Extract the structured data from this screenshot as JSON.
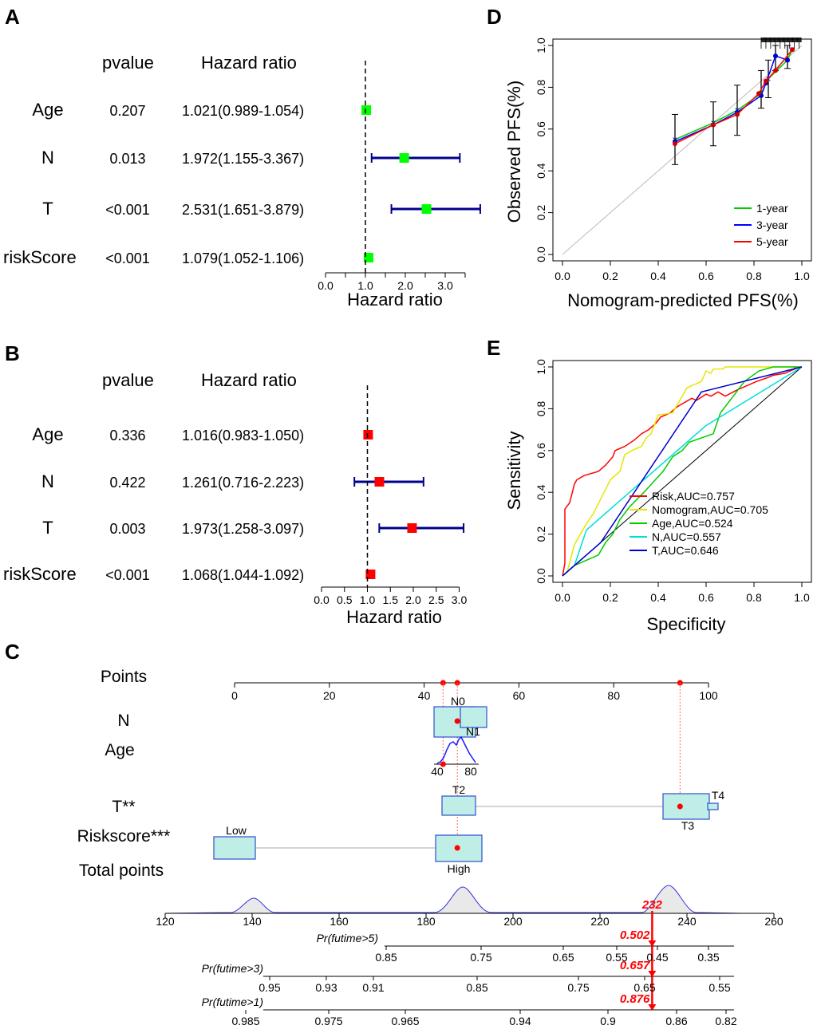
{
  "panels": {
    "A": "A",
    "B": "B",
    "C": "C",
    "D": "D",
    "E": "E"
  },
  "chart_data": [
    {
      "id": "A",
      "type": "forest",
      "headers": {
        "pvalue": "pvalue",
        "hr": "Hazard ratio"
      },
      "rows": [
        {
          "label": "Age",
          "pvalue": "0.207",
          "hr_text": "1.021(0.989-1.054)",
          "hr": 1.021,
          "lo": 0.989,
          "hi": 1.054
        },
        {
          "label": "N",
          "pvalue": "0.013",
          "hr_text": "1.972(1.155-3.367)",
          "hr": 1.972,
          "lo": 1.155,
          "hi": 3.367
        },
        {
          "label": "T",
          "pvalue": "<0.001",
          "hr_text": "2.531(1.651-3.879)",
          "hr": 2.531,
          "lo": 1.651,
          "hi": 3.879
        },
        {
          "label": "riskScore",
          "pvalue": "<0.001",
          "hr_text": "1.079(1.052-1.106)",
          "hr": 1.079,
          "lo": 1.052,
          "hi": 1.106
        }
      ],
      "xticks": [
        0.0,
        0.5,
        1.0,
        1.5,
        2.0,
        2.5,
        3.0,
        3.5
      ],
      "xtick_labels": [
        "0.0",
        "",
        "1.0",
        "",
        "2.0",
        "",
        "3.0",
        ""
      ],
      "xlim": [
        0,
        3.5
      ],
      "xlabel": "Hazard ratio",
      "ref_line": 1.0,
      "color": "#00ff00",
      "ci_color": "#00008b"
    },
    {
      "id": "B",
      "type": "forest",
      "headers": {
        "pvalue": "pvalue",
        "hr": "Hazard ratio"
      },
      "rows": [
        {
          "label": "Age",
          "pvalue": "0.336",
          "hr_text": "1.016(0.983-1.050)",
          "hr": 1.016,
          "lo": 0.983,
          "hi": 1.05
        },
        {
          "label": "N",
          "pvalue": "0.422",
          "hr_text": "1.261(0.716-2.223)",
          "hr": 1.261,
          "lo": 0.716,
          "hi": 2.223
        },
        {
          "label": "T",
          "pvalue": "0.003",
          "hr_text": "1.973(1.258-3.097)",
          "hr": 1.973,
          "lo": 1.258,
          "hi": 3.097
        },
        {
          "label": "riskScore",
          "pvalue": "<0.001",
          "hr_text": "1.068(1.044-1.092)",
          "hr": 1.068,
          "lo": 1.044,
          "hi": 1.092
        }
      ],
      "xticks": [
        0.0,
        0.5,
        1.0,
        1.5,
        2.0,
        2.5,
        3.0
      ],
      "xtick_labels": [
        "0.0",
        "0.5",
        "1.0",
        "1.5",
        "2.0",
        "2.5",
        "3.0"
      ],
      "xlim": [
        0,
        3
      ],
      "xlabel": "Hazard ratio",
      "ref_line": 1.0,
      "color": "#ff0000",
      "ci_color": "#00008b"
    },
    {
      "id": "D",
      "type": "line",
      "title": "",
      "xlabel": "Nomogram-predicted PFS(%)",
      "ylabel": "Observed PFS(%)",
      "xlim": [
        0,
        1
      ],
      "ylim": [
        0,
        1
      ],
      "xticks": [
        "0.0",
        "0.2",
        "0.4",
        "0.6",
        "0.8",
        "1.0"
      ],
      "yticks": [
        "0.0",
        "0.2",
        "0.4",
        "0.6",
        "0.8",
        "1.0"
      ],
      "diagonal": true,
      "series": [
        {
          "name": "1-year",
          "color": "#00cc00",
          "x": [
            0.47,
            0.63,
            0.73,
            0.83,
            0.86,
            0.94,
            0.96
          ],
          "y": [
            0.55,
            0.63,
            0.69,
            0.77,
            0.84,
            0.93,
            0.98
          ]
        },
        {
          "name": "3-year",
          "color": "#0000ff",
          "x": [
            0.47,
            0.63,
            0.73,
            0.83,
            0.85,
            0.89,
            0.94
          ],
          "y": [
            0.54,
            0.62,
            0.68,
            0.76,
            0.82,
            0.95,
            0.93
          ]
        },
        {
          "name": "5-year",
          "color": "#ff0000",
          "x": [
            0.47,
            0.63,
            0.73,
            0.82,
            0.85,
            0.89,
            0.96
          ],
          "y": [
            0.53,
            0.62,
            0.67,
            0.77,
            0.83,
            0.88,
            0.98
          ]
        }
      ],
      "error_bars": [
        {
          "x": 0.47,
          "y": 0.54,
          "lo": 0.43,
          "hi": 0.67
        },
        {
          "x": 0.63,
          "y": 0.62,
          "lo": 0.52,
          "hi": 0.73
        },
        {
          "x": 0.73,
          "y": 0.68,
          "lo": 0.57,
          "hi": 0.81
        },
        {
          "x": 0.83,
          "y": 0.77,
          "lo": 0.7,
          "hi": 0.88
        },
        {
          "x": 0.86,
          "y": 0.83,
          "lo": 0.75,
          "hi": 0.93
        },
        {
          "x": 0.89,
          "y": 0.95,
          "lo": 0.88,
          "hi": 1.02
        },
        {
          "x": 0.94,
          "y": 0.93,
          "lo": 0.89,
          "hi": 1.01
        }
      ],
      "legend_position": "bottom-right"
    },
    {
      "id": "E",
      "type": "line",
      "subtype": "roc",
      "xlabel": "Specificity",
      "ylabel": "Sensitivity",
      "xlim": [
        0,
        1
      ],
      "ylim": [
        0,
        1
      ],
      "xticks": [
        "0.0",
        "0.2",
        "0.4",
        "0.6",
        "0.8",
        "1.0"
      ],
      "yticks": [
        "0.0",
        "0.2",
        "0.4",
        "0.6",
        "0.8",
        "1.0"
      ],
      "series": [
        {
          "name": "Risk,AUC=0.757",
          "color": "#ff0000",
          "x": [
            0,
            0.01,
            0.01,
            0.03,
            0.05,
            0.06,
            0.09,
            0.15,
            0.18,
            0.21,
            0.22,
            0.26,
            0.3,
            0.33,
            0.36,
            0.39,
            0.41,
            0.45,
            0.48,
            0.54,
            0.56,
            0.6,
            0.62,
            0.65,
            0.68,
            0.73,
            0.77,
            0.81,
            0.86,
            0.88,
            0.93,
            0.95,
            0.97,
            0.97,
            1.0
          ],
          "y": [
            0,
            0.06,
            0.32,
            0.35,
            0.44,
            0.46,
            0.48,
            0.5,
            0.53,
            0.57,
            0.6,
            0.62,
            0.65,
            0.68,
            0.7,
            0.73,
            0.76,
            0.78,
            0.81,
            0.85,
            0.84,
            0.87,
            0.86,
            0.88,
            0.86,
            0.89,
            0.91,
            0.93,
            0.95,
            0.96,
            0.97,
            0.98,
            0.99,
            1.0,
            1.0
          ]
        },
        {
          "name": "Nomogram,AUC=0.705",
          "color": "#e6e600",
          "x": [
            0,
            0.02,
            0.05,
            0.1,
            0.13,
            0.2,
            0.24,
            0.26,
            0.29,
            0.33,
            0.35,
            0.37,
            0.4,
            0.46,
            0.52,
            0.58,
            0.6,
            0.62,
            0.63,
            0.67,
            0.68,
            0.78,
            0.8,
            0.85,
            0.92,
            0.97,
            1.0
          ],
          "y": [
            0,
            0.02,
            0.15,
            0.25,
            0.3,
            0.46,
            0.5,
            0.58,
            0.6,
            0.62,
            0.66,
            0.68,
            0.77,
            0.78,
            0.9,
            0.93,
            0.98,
            0.97,
            0.99,
            0.99,
            1.0,
            1.0,
            1.0,
            1.0,
            1.0,
            1.0,
            1.0
          ]
        },
        {
          "name": "Age,AUC=0.524",
          "color": "#00cc00",
          "x": [
            0,
            0.02,
            0.05,
            0.15,
            0.18,
            0.21,
            0.24,
            0.28,
            0.34,
            0.38,
            0.42,
            0.46,
            0.5,
            0.53,
            0.58,
            0.63,
            0.66,
            0.72,
            0.76,
            0.82,
            0.88,
            0.92,
            0.95,
            0.98,
            1.0
          ],
          "y": [
            0,
            0.02,
            0.05,
            0.1,
            0.16,
            0.2,
            0.27,
            0.33,
            0.4,
            0.45,
            0.5,
            0.57,
            0.6,
            0.64,
            0.66,
            0.68,
            0.78,
            0.87,
            0.93,
            0.98,
            1.0,
            1.0,
            1.0,
            1.0,
            1.0
          ]
        },
        {
          "name": "N,AUC=0.557",
          "color": "#00dddd",
          "x": [
            0,
            0.05,
            0.1,
            0.6,
            1.0
          ],
          "y": [
            0,
            0.05,
            0.22,
            0.72,
            1.0
          ]
        },
        {
          "name": "T,AUC=0.646",
          "color": "#0000cc",
          "x": [
            0,
            0.16,
            0.58,
            1.0
          ],
          "y": [
            0,
            0.16,
            0.88,
            1.0
          ]
        }
      ],
      "reference_line": "diagonal",
      "legend_position": "bottom-right"
    },
    {
      "id": "C",
      "type": "nomogram",
      "rows": [
        {
          "label": "Points",
          "ticks": [
            "0",
            "20",
            "40",
            "60",
            "80",
            "100"
          ]
        },
        {
          "label": "N",
          "levels": [
            "N0",
            "N1"
          ]
        },
        {
          "label": "Age",
          "ticks": [
            "40",
            "80"
          ]
        },
        {
          "label": "T**",
          "levels": [
            "T2",
            "T3",
            "T4"
          ]
        },
        {
          "label": "Riskscore***",
          "levels": [
            "Low",
            "High"
          ]
        },
        {
          "label": "Total points",
          "ticks": [
            "120",
            "140",
            "160",
            "180",
            "200",
            "220",
            "240",
            "260"
          ],
          "marker": "232"
        }
      ],
      "probabilities": [
        {
          "label": "Pr(futime>5)",
          "ticks": [
            "0.85",
            "0.75",
            "0.65",
            "0.55",
            "0.45",
            "0.35"
          ],
          "value": "0.502"
        },
        {
          "label": "Pr(futime>3)",
          "ticks": [
            "0.95",
            "0.93",
            "0.91",
            "0.85",
            "0.75",
            "0.65",
            "0.55"
          ],
          "value": "0.657"
        },
        {
          "label": "Pr(futime>1)",
          "ticks": [
            "0.985",
            "0.975",
            "0.965",
            "0.94",
            "0.9",
            "0.86",
            "0.82"
          ],
          "value": "0.876"
        }
      ],
      "points_selected": [
        44,
        47,
        94
      ],
      "total_points": 232
    }
  ]
}
